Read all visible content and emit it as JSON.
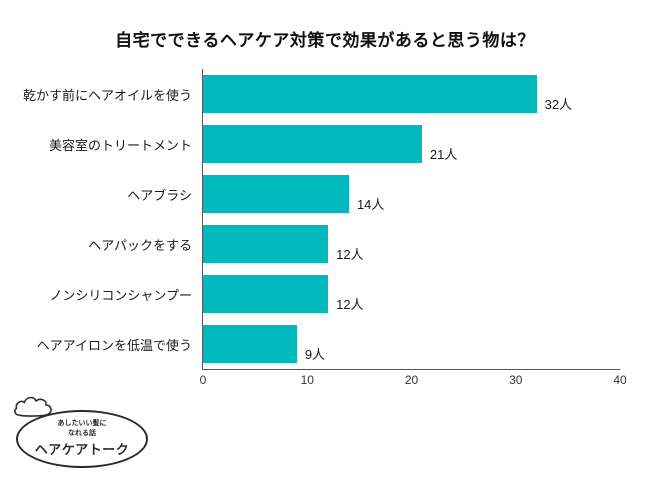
{
  "page": {
    "title": "自宅でできるヘアケア対策で効果があると思う物は？"
  },
  "chart_data": {
    "type": "bar",
    "orientation": "horizontal",
    "title": "自宅でできるヘアケア対策で効果があると思う物は？",
    "categories": [
      "乾かす前にヘアオイルを使う",
      "美容室のトリートメント",
      "ヘアブラシ",
      "ヘアパックをする",
      "ノンシリコンシャンプー",
      "ヘアアイロンを低温で使う"
    ],
    "values": [
      32,
      21,
      14,
      12,
      12,
      9
    ],
    "value_labels": [
      "32人",
      "21人",
      "14人",
      "12人",
      "12人",
      "9人"
    ],
    "xlim": [
      0,
      40
    ],
    "x_ticks": [
      "0",
      "10",
      "20",
      "30",
      "40"
    ],
    "bar_color": "#00b9be",
    "grid": "off",
    "legend": "none"
  },
  "logo": {
    "tagline_line1": "あしたいい髪に",
    "tagline_line2": "なれる話",
    "name": "ヘアケアトーク"
  }
}
